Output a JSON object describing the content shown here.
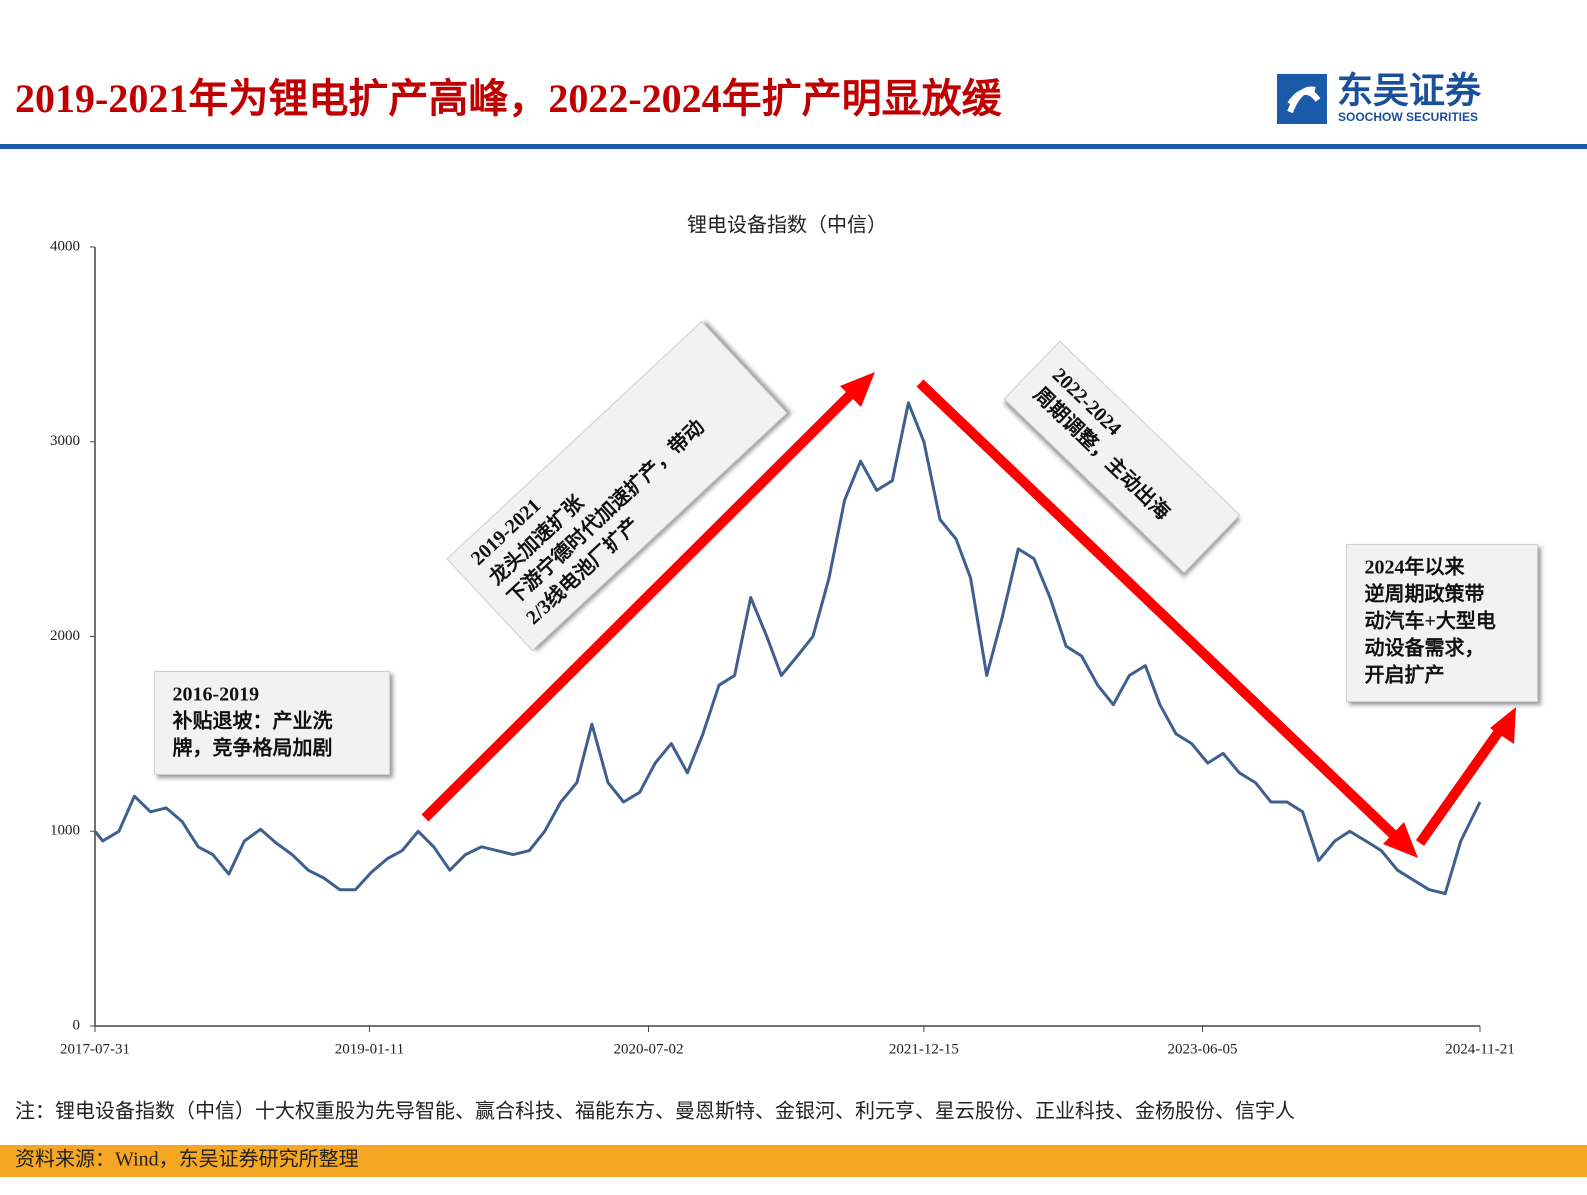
{
  "header": {
    "title": "2019-2021年为锂电扩产高峰，2022-2024年扩产明显放缓",
    "logo_cn": "东吴证券",
    "logo_en": "SOOCHOW SECURITIES"
  },
  "chart_data": {
    "type": "line",
    "title": "锂电设备指数（中信）",
    "color": "#3f5f8f",
    "x": [
      "2017-07-31",
      "2017-08-15",
      "2017-09-15",
      "2017-10-15",
      "2017-11-15",
      "2017-12-15",
      "2018-01-15",
      "2018-02-15",
      "2018-03-15",
      "2018-04-15",
      "2018-05-15",
      "2018-06-15",
      "2018-07-15",
      "2018-08-15",
      "2018-09-15",
      "2018-10-15",
      "2018-11-15",
      "2018-12-15",
      "2019-01-15",
      "2019-02-15",
      "2019-03-15",
      "2019-04-15",
      "2019-05-15",
      "2019-06-15",
      "2019-07-15",
      "2019-08-15",
      "2019-09-15",
      "2019-10-15",
      "2019-11-15",
      "2019-12-15",
      "2020-01-15",
      "2020-02-15",
      "2020-03-15",
      "2020-04-15",
      "2020-05-15",
      "2020-06-15",
      "2020-07-15",
      "2020-08-15",
      "2020-09-15",
      "2020-10-15",
      "2020-11-15",
      "2020-12-15",
      "2021-01-15",
      "2021-02-15",
      "2021-03-15",
      "2021-04-15",
      "2021-05-15",
      "2021-06-15",
      "2021-07-15",
      "2021-08-15",
      "2021-09-15",
      "2021-10-15",
      "2021-11-15",
      "2021-12-15",
      "2022-01-15",
      "2022-02-15",
      "2022-03-15",
      "2022-04-15",
      "2022-05-15",
      "2022-06-15",
      "2022-07-15",
      "2022-08-15",
      "2022-09-15",
      "2022-10-15",
      "2022-11-15",
      "2022-12-15",
      "2023-01-15",
      "2023-02-15",
      "2023-03-15",
      "2023-04-15",
      "2023-05-15",
      "2023-06-15",
      "2023-07-15",
      "2023-08-15",
      "2023-09-15",
      "2023-10-15",
      "2023-11-15",
      "2023-12-15",
      "2024-01-15",
      "2024-02-15",
      "2024-03-15",
      "2024-04-15",
      "2024-05-15",
      "2024-06-15",
      "2024-07-15",
      "2024-08-15",
      "2024-09-15",
      "2024-10-15",
      "2024-11-21"
    ],
    "values": [
      1000,
      950,
      1000,
      1180,
      1100,
      1120,
      1050,
      920,
      880,
      780,
      950,
      1010,
      940,
      880,
      800,
      760,
      700,
      700,
      790,
      860,
      900,
      1000,
      920,
      800,
      880,
      920,
      900,
      880,
      900,
      1000,
      1150,
      1250,
      1550,
      1250,
      1150,
      1200,
      1350,
      1450,
      1300,
      1500,
      1750,
      1800,
      2200,
      2000,
      1800,
      1900,
      2000,
      2300,
      2700,
      2900,
      2750,
      2800,
      3200,
      3000,
      2600,
      2500,
      2300,
      1800,
      2100,
      2450,
      2400,
      2200,
      1950,
      1900,
      1750,
      1650,
      1800,
      1850,
      1650,
      1500,
      1450,
      1350,
      1400,
      1300,
      1250,
      1150,
      1150,
      1100,
      850,
      950,
      1000,
      950,
      900,
      800,
      750,
      700,
      680,
      950,
      1150
    ],
    "xlim": [
      "2017-07-31",
      "2024-11-21"
    ],
    "xticks": [
      "2017-07-31",
      "2019-01-11",
      "2020-07-02",
      "2021-12-15",
      "2023-06-05",
      "2024-11-21"
    ],
    "ylim": [
      0,
      4000
    ],
    "yticks": [
      0,
      1000,
      2000,
      3000,
      4000
    ],
    "grid": false,
    "annotations": [
      {
        "lines": [
          "2016-2019",
          "补贴退坡：产业洗",
          "牌，竞争格局加剧"
        ]
      },
      {
        "lines": [
          "2019-2021",
          "龙头加速扩张",
          "下游宁德时代加速扩产，带动",
          "2/3线电池厂扩产"
        ]
      },
      {
        "lines": [
          "2022-2024",
          "周期调整，主动出海"
        ]
      },
      {
        "lines": [
          "2024年以来",
          "逆周期政策带",
          "动汽车+大型电",
          "动设备需求，",
          "开启扩产"
        ]
      }
    ]
  },
  "footer": {
    "note": "注：锂电设备指数（中信）十大权重股为先导智能、赢合科技、福能东方、曼恩斯特、金银河、利元亨、星云股份、正业科技、金杨股份、信宇人",
    "source": "资料来源：Wind，东吴证券研究所整理"
  }
}
